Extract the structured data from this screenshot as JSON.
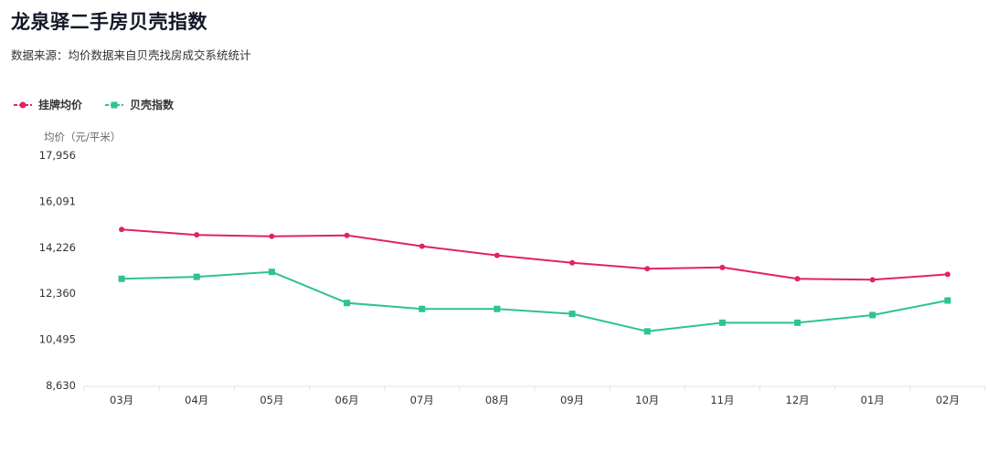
{
  "header": {
    "title": "龙泉驿二手房贝壳指数",
    "subtitle": "数据来源：均价数据来自贝壳找房成交系统统计"
  },
  "colors": {
    "listing": "#e0245e",
    "index": "#2ec48c",
    "axis": "#dddddd",
    "text": "#333333"
  },
  "chart_data": {
    "type": "line",
    "categories": [
      "03月",
      "04月",
      "05月",
      "06月",
      "07月",
      "08月",
      "09月",
      "10月",
      "11月",
      "12月",
      "01月",
      "02月"
    ],
    "ylabel": "均价（元/平米）",
    "ylim": [
      8630,
      17956
    ],
    "yticks": [
      "17,956",
      "16,091",
      "14,226",
      "12,360",
      "10,495",
      "8,630"
    ],
    "ytick_values": [
      17956,
      16091,
      14226,
      12360,
      10495,
      8630
    ],
    "legend_position": "top-left",
    "grid": false,
    "series": [
      {
        "name": "挂牌均价",
        "marker": "circle",
        "color": "#e0245e",
        "values": [
          14950,
          14730,
          14670,
          14710,
          14270,
          13900,
          13600,
          13360,
          13410,
          12950,
          12910,
          13130
        ]
      },
      {
        "name": "贝壳指数",
        "marker": "square",
        "color": "#2ec48c",
        "values": [
          12950,
          13030,
          13230,
          11970,
          11730,
          11730,
          11530,
          10820,
          11170,
          11170,
          11480,
          12070
        ]
      }
    ]
  }
}
